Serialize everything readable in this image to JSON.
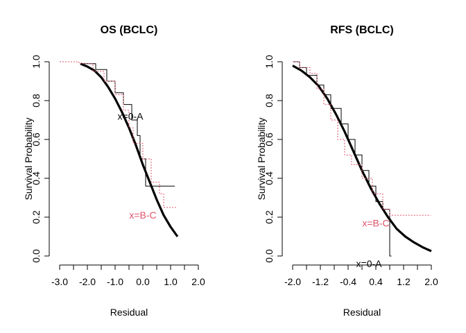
{
  "chart_data": [
    {
      "type": "line",
      "title": "OS (BCLC)",
      "xlabel": "Residual",
      "ylabel": "Survival Probability",
      "xlim": [
        -3.0,
        2.0
      ],
      "ylim": [
        0.0,
        1.0
      ],
      "xticks": [
        -3.0,
        -2.5,
        -2.0,
        -1.5,
        -1.0,
        -0.5,
        0.0,
        0.5,
        1.0,
        1.5,
        2.0
      ],
      "xtick_labels": [
        "-3.0",
        "",
        "-2.0",
        "",
        "-1.0",
        "",
        "0.0",
        "",
        "1.0",
        "",
        "2.0"
      ],
      "yticks": [
        0.0,
        0.2,
        0.4,
        0.6,
        0.8,
        1.0
      ],
      "ytick_labels": [
        "0.0",
        "0.2",
        "0.4",
        "0.6",
        "0.8",
        "1.0"
      ],
      "series": [
        {
          "kind": "fitted-curve",
          "color": "#000000",
          "x": [
            -2.25,
            -2.0,
            -1.75,
            -1.5,
            -1.25,
            -1.0,
            -0.75,
            -0.5,
            -0.25,
            0.0,
            0.25,
            0.5,
            0.75,
            1.0,
            1.25
          ],
          "values": [
            0.99,
            0.975,
            0.955,
            0.92,
            0.87,
            0.81,
            0.74,
            0.66,
            0.57,
            0.47,
            0.38,
            0.29,
            0.21,
            0.15,
            0.1
          ]
        },
        {
          "kind": "km-step",
          "color": "#000000",
          "x": [
            -2.2,
            -1.7,
            -1.3,
            -1.0,
            -0.7,
            -0.4,
            -0.2,
            -0.1,
            0.1,
            1.15
          ],
          "values": [
            0.99,
            0.96,
            0.9,
            0.84,
            0.78,
            0.7,
            0.62,
            0.5,
            0.36,
            0.36
          ]
        },
        {
          "kind": "km-step",
          "color": "#DF536B",
          "dashed": true,
          "x": [
            -3.0,
            -2.3,
            -1.8,
            -1.4,
            -1.0,
            -0.7,
            -0.5,
            -0.35,
            0.0,
            0.3,
            0.6,
            0.75,
            1.25
          ],
          "values": [
            1.0,
            0.99,
            0.95,
            0.9,
            0.83,
            0.75,
            0.66,
            0.58,
            0.5,
            0.38,
            0.32,
            0.25,
            0.25
          ]
        }
      ],
      "annotations": [
        {
          "text": "x=0-A",
          "x": -0.45,
          "y": 0.72,
          "color": "#000000"
        },
        {
          "text": "x=B-C",
          "x": 0.0,
          "y": 0.21,
          "color": "#DF536B"
        }
      ]
    },
    {
      "type": "line",
      "title": "RFS (BCLC)",
      "xlabel": "Residual",
      "ylabel": "Survival Probability",
      "xlim": [
        -2.0,
        2.0
      ],
      "ylim": [
        0.0,
        1.0
      ],
      "xticks": [
        -2.0,
        -1.6,
        -1.2,
        -0.8,
        -0.4,
        0.0,
        0.4,
        0.8,
        1.2,
        1.6,
        2.0
      ],
      "xtick_labels": [
        "-2.0",
        "",
        "-1.2",
        "",
        "-0.4",
        "",
        "0.4",
        "",
        "1.2",
        "",
        "2.0"
      ],
      "yticks": [
        0.0,
        0.2,
        0.4,
        0.6,
        0.8,
        1.0
      ],
      "ytick_labels": [
        "0.0",
        "0.2",
        "0.4",
        "0.6",
        "0.8",
        "1.0"
      ],
      "series": [
        {
          "kind": "fitted-curve",
          "color": "#000000",
          "x": [
            -2.0,
            -1.75,
            -1.5,
            -1.25,
            -1.0,
            -0.75,
            -0.5,
            -0.25,
            0.0,
            0.25,
            0.5,
            0.75,
            1.0,
            1.25,
            1.5,
            1.75,
            2.0
          ],
          "values": [
            0.98,
            0.955,
            0.92,
            0.875,
            0.81,
            0.73,
            0.64,
            0.54,
            0.44,
            0.35,
            0.27,
            0.2,
            0.14,
            0.1,
            0.07,
            0.045,
            0.025
          ]
        },
        {
          "kind": "km-step",
          "color": "#000000",
          "x": [
            -2.0,
            -1.8,
            -1.6,
            -1.3,
            -1.1,
            -0.9,
            -0.6,
            -0.4,
            -0.2,
            0.0,
            0.2,
            0.4,
            0.6,
            0.8,
            0.85
          ],
          "values": [
            1.0,
            0.97,
            0.93,
            0.88,
            0.83,
            0.76,
            0.68,
            0.6,
            0.52,
            0.44,
            0.36,
            0.28,
            0.24,
            0.0,
            0.0
          ]
        },
        {
          "kind": "km-step",
          "color": "#DF536B",
          "dashed": true,
          "x": [
            -2.0,
            -1.8,
            -1.5,
            -1.3,
            -1.1,
            -0.9,
            -0.7,
            -0.5,
            -0.3,
            0.0,
            0.3,
            0.6,
            0.8,
            1.99
          ],
          "values": [
            1.0,
            0.97,
            0.94,
            0.86,
            0.78,
            0.7,
            0.6,
            0.52,
            0.47,
            0.4,
            0.32,
            0.24,
            0.21,
            0.21
          ]
        }
      ],
      "annotations": [
        {
          "text": "x=B-C",
          "x": 0.4,
          "y": 0.17,
          "color": "#DF536B"
        },
        {
          "text": "x=0-A",
          "x": 0.2,
          "y": -0.04,
          "color": "#000000"
        }
      ]
    }
  ]
}
